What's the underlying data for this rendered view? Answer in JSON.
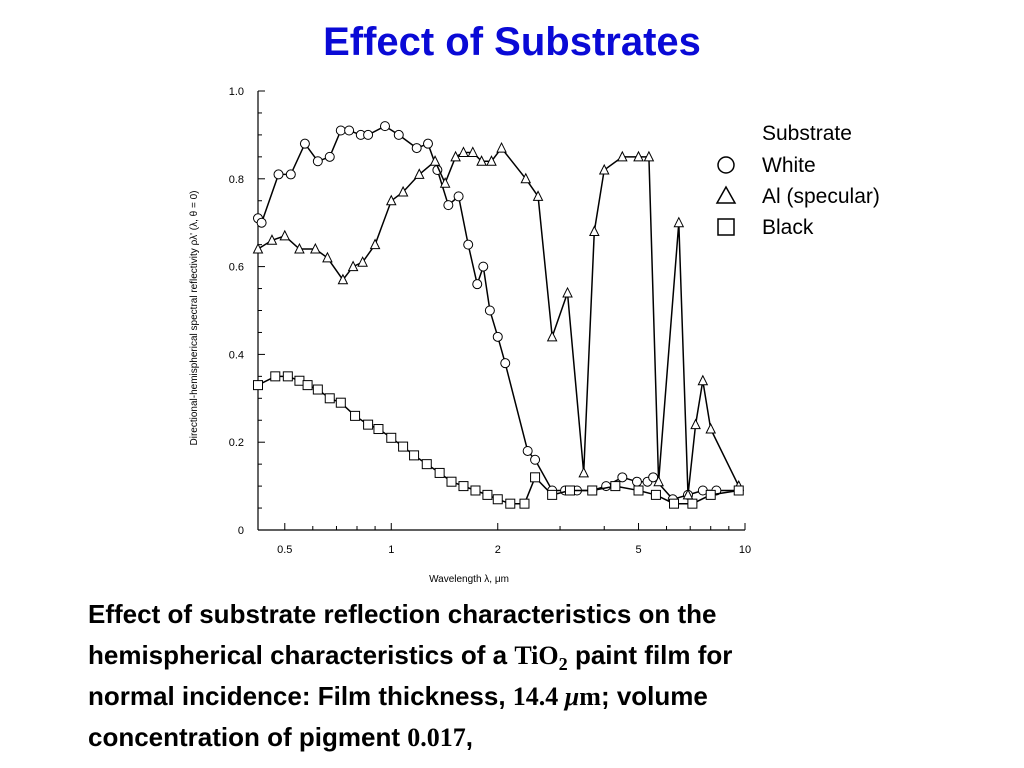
{
  "title": "Effect of Substrates",
  "caption": {
    "line1": "Effect of substrate reflection characteristics on the",
    "line2_a": "hemispherical characteristics of a ",
    "line2_tio": "TiO",
    "line2_sub": "2",
    "line2_b": " paint film for",
    "line3_a": "normal incidence: Film thickness, ",
    "line3_num": "14.4 ",
    "line3_mu": "μ",
    "line3_m": "m",
    "line3_b": "; volume",
    "line4_a": "concentration of pigment ",
    "line4_num": "0.017",
    "line4_b": ","
  },
  "chart_data": {
    "type": "line",
    "xscale": "log",
    "xlim": [
      0.42,
      10
    ],
    "ylim": [
      0,
      1.0
    ],
    "xticks": [
      0.5,
      1,
      2,
      5,
      10
    ],
    "xtick_labels": [
      "0.5",
      "1",
      "2",
      "5",
      "10"
    ],
    "yticks": [
      0,
      0.2,
      0.4,
      0.6,
      0.8,
      1.0
    ],
    "ytick_labels": [
      "0",
      "0.2",
      "0.4",
      "0.6",
      "0.8",
      "1.0"
    ],
    "xlabel": "Wavelength λ, μm",
    "ylabel": "Directional-hemispherical spectral reflectivity ρλ' (λ, θ = 0)",
    "legend_title": "Substrate",
    "legend_position": "top-right",
    "series": [
      {
        "name": "White",
        "marker": "circle",
        "x": [
          0.42,
          0.43,
          0.48,
          0.52,
          0.57,
          0.62,
          0.67,
          0.72,
          0.76,
          0.82,
          0.86,
          0.96,
          1.05,
          1.18,
          1.27,
          1.35,
          1.45,
          1.55,
          1.65,
          1.75,
          1.82,
          1.9,
          2.0,
          2.1,
          2.43,
          2.55,
          2.85,
          3.1,
          3.35,
          3.7,
          4.05,
          4.5,
          4.95,
          5.3,
          5.5,
          6.25,
          6.9,
          7.6,
          8.3,
          9.6
        ],
        "y": [
          0.71,
          0.7,
          0.81,
          0.81,
          0.88,
          0.84,
          0.85,
          0.91,
          0.91,
          0.9,
          0.9,
          0.92,
          0.9,
          0.87,
          0.88,
          0.82,
          0.74,
          0.76,
          0.65,
          0.56,
          0.6,
          0.5,
          0.44,
          0.38,
          0.18,
          0.16,
          0.09,
          0.09,
          0.09,
          0.09,
          0.1,
          0.12,
          0.11,
          0.11,
          0.12,
          0.07,
          0.08,
          0.09,
          0.09,
          0.09
        ]
      },
      {
        "name": "Al (specular)",
        "marker": "triangle",
        "x": [
          0.42,
          0.46,
          0.5,
          0.55,
          0.61,
          0.66,
          0.73,
          0.78,
          0.83,
          0.9,
          1.0,
          1.08,
          1.2,
          1.33,
          1.42,
          1.52,
          1.6,
          1.7,
          1.8,
          1.92,
          2.05,
          2.4,
          2.6,
          2.85,
          3.15,
          3.5,
          3.75,
          4.0,
          4.5,
          5.0,
          5.35,
          5.7,
          6.5,
          6.9,
          7.25,
          7.6,
          8.0,
          9.6
        ],
        "y": [
          0.64,
          0.66,
          0.67,
          0.64,
          0.64,
          0.62,
          0.57,
          0.6,
          0.61,
          0.65,
          0.75,
          0.77,
          0.81,
          0.84,
          0.79,
          0.85,
          0.86,
          0.86,
          0.84,
          0.84,
          0.87,
          0.8,
          0.76,
          0.44,
          0.54,
          0.13,
          0.68,
          0.82,
          0.85,
          0.85,
          0.85,
          0.11,
          0.7,
          0.08,
          0.24,
          0.34,
          0.23,
          0.1
        ]
      },
      {
        "name": "Black",
        "marker": "square",
        "x": [
          0.42,
          0.47,
          0.51,
          0.55,
          0.58,
          0.62,
          0.67,
          0.72,
          0.79,
          0.86,
          0.92,
          1.0,
          1.08,
          1.16,
          1.26,
          1.37,
          1.48,
          1.6,
          1.73,
          1.87,
          2.0,
          2.17,
          2.38,
          2.55,
          2.85,
          3.2,
          3.7,
          4.3,
          5.0,
          5.6,
          6.3,
          7.1,
          8.0,
          9.6
        ],
        "y": [
          0.33,
          0.35,
          0.35,
          0.34,
          0.33,
          0.32,
          0.3,
          0.29,
          0.26,
          0.24,
          0.23,
          0.21,
          0.19,
          0.17,
          0.15,
          0.13,
          0.11,
          0.1,
          0.09,
          0.08,
          0.07,
          0.06,
          0.06,
          0.12,
          0.08,
          0.09,
          0.09,
          0.1,
          0.09,
          0.08,
          0.06,
          0.06,
          0.08,
          0.09
        ]
      }
    ]
  }
}
